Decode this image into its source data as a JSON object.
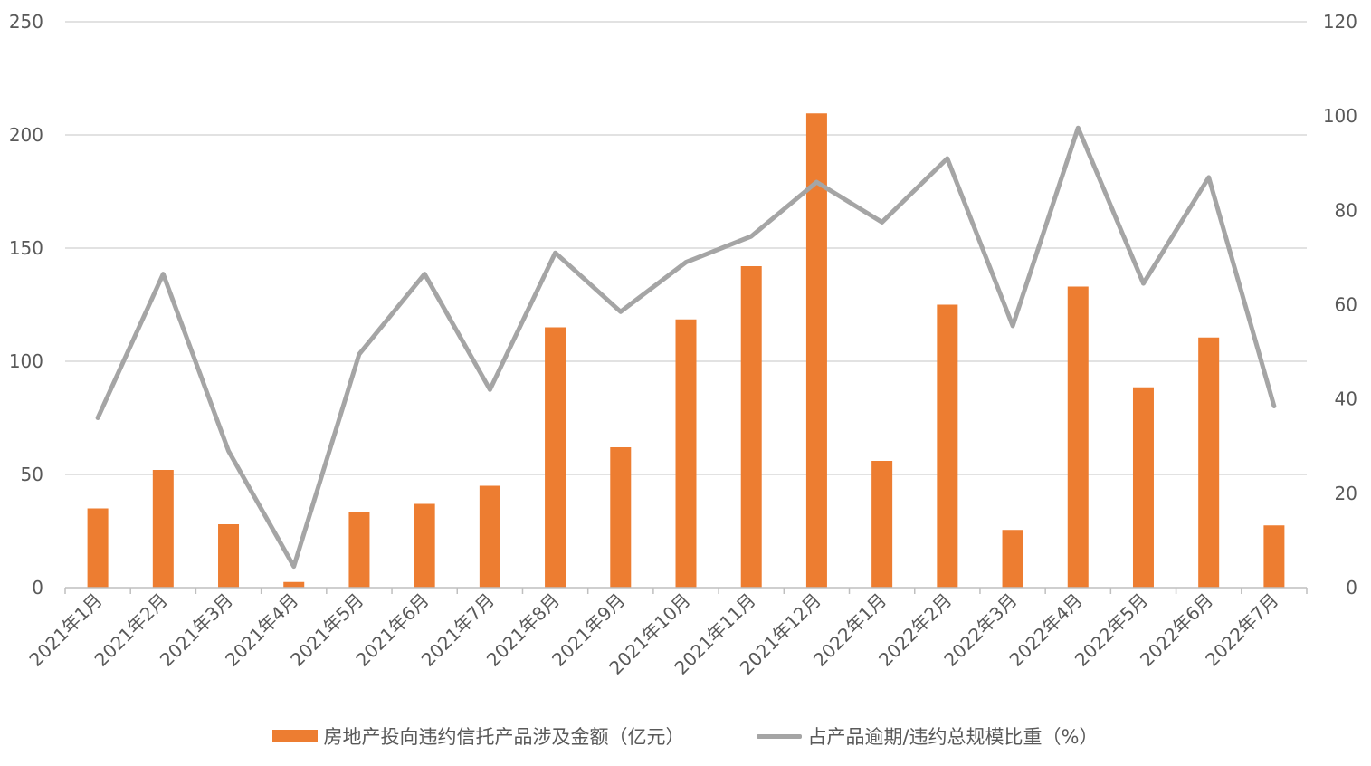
{
  "chart_data": {
    "type": "bar+line",
    "title": "",
    "categories": [
      "2021年1月",
      "2021年2月",
      "2021年3月",
      "2021年4月",
      "2021年5月",
      "2021年6月",
      "2021年7月",
      "2021年8月",
      "2021年9月",
      "2021年10月",
      "2021年11月",
      "2021年12月",
      "2022年1月",
      "2022年2月",
      "2022年3月",
      "2022年4月",
      "2022年5月",
      "2022年6月",
      "2022年7月"
    ],
    "series": [
      {
        "name": "房地产投向违约信托产品涉及金额（亿元）",
        "type": "bar",
        "axis": "left",
        "color": "#ED7D31",
        "values": [
          35,
          52,
          28,
          2.5,
          33.5,
          37,
          45,
          115,
          62,
          118.5,
          142,
          209.5,
          56,
          125,
          25.5,
          133,
          88.5,
          110.5,
          27.5
        ]
      },
      {
        "name": "占产品逾期/违约总规模比重（%）",
        "type": "line",
        "axis": "right",
        "color": "#A5A5A5",
        "values": [
          36,
          66.5,
          29,
          4.5,
          49.5,
          66.5,
          42,
          71,
          58.5,
          69,
          74.5,
          86,
          77.5,
          91,
          55.5,
          97.5,
          64.5,
          87,
          38.5
        ]
      }
    ],
    "y_left": {
      "min": 0,
      "max": 250,
      "ticks": [
        "0",
        "50",
        "100",
        "150",
        "200",
        "250"
      ]
    },
    "y_right": {
      "min": 0,
      "max": 120,
      "ticks": [
        "0",
        "20",
        "40",
        "60",
        "80",
        "100",
        "120"
      ]
    },
    "grid": true,
    "legend_position": "bottom"
  }
}
